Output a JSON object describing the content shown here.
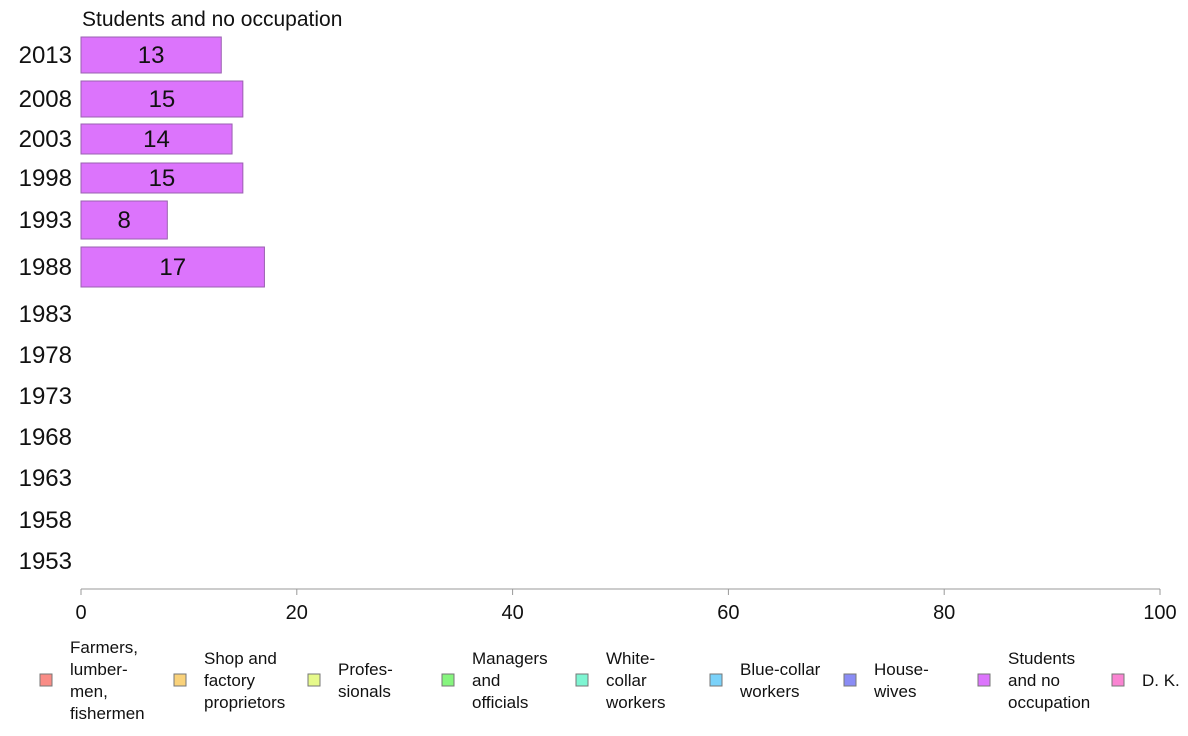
{
  "chart_data": {
    "type": "bar",
    "orientation": "horizontal",
    "title": "Students and no occupation",
    "categories": [
      "2013",
      "2008",
      "2003",
      "1998",
      "1993",
      "1988",
      "1983",
      "1978",
      "1973",
      "1968",
      "1963",
      "1958",
      "1953"
    ],
    "values": [
      13,
      15,
      14,
      15,
      8,
      17,
      null,
      null,
      null,
      null,
      null,
      null,
      null
    ],
    "series_color": "#dc74fc",
    "xlim": [
      0,
      100
    ],
    "xticks": [
      "0",
      "20",
      "40",
      "60",
      "80",
      "100"
    ],
    "grid": false,
    "legend_position": "bottom",
    "legend": [
      {
        "label": [
          "Farmers,",
          "lumber-",
          "men,",
          "fishermen"
        ],
        "color": "#f98c86"
      },
      {
        "label": [
          "Shop and",
          "factory",
          "proprietors"
        ],
        "color": "#fad27a"
      },
      {
        "label": [
          "Profes-",
          "sionals"
        ],
        "color": "#e6f98a"
      },
      {
        "label": [
          "Managers",
          "and",
          "officials"
        ],
        "color": "#86f57e"
      },
      {
        "label": [
          "White-",
          "collar",
          "workers"
        ],
        "color": "#7ef5d2"
      },
      {
        "label": [
          "Blue-collar",
          "workers"
        ],
        "color": "#7ad2fa"
      },
      {
        "label": [
          "House-",
          "wives"
        ],
        "color": "#8a8cf5"
      },
      {
        "label": [
          "Students",
          "and no",
          "occupation"
        ],
        "color": "#dc74fc"
      },
      {
        "label": [
          "D. K."
        ],
        "color": "#fa84d2"
      }
    ]
  }
}
